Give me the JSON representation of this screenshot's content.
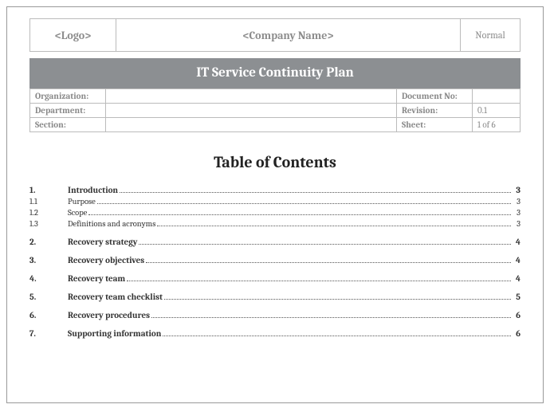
{
  "header": {
    "logo_placeholder": "<Logo>",
    "company_placeholder": "<Company Name>",
    "mode": "Normal"
  },
  "title": "IT Service Continuity Plan",
  "meta": {
    "org_label": "Organization:",
    "org_value": "",
    "docno_label": "Document No:",
    "docno_value": "",
    "dept_label": "Department:",
    "dept_value": "",
    "rev_label": "Revision:",
    "rev_value": "0.1",
    "sect_label": "Section:",
    "sect_value": "",
    "sheet_label": "Sheet:",
    "sheet_value": "1 of 6"
  },
  "toc_heading": "Table of Contents",
  "toc": [
    {
      "level": 1,
      "num": "1.",
      "label": "Introduction",
      "page": "3"
    },
    {
      "level": 2,
      "num": "1.1",
      "label": "Purpose",
      "page": "3"
    },
    {
      "level": 2,
      "num": "1.2",
      "label": "Scope",
      "page": "3"
    },
    {
      "level": 2,
      "num": "1.3",
      "label": "Definitions and acronyms",
      "page": "3"
    },
    {
      "level": 1,
      "num": "2.",
      "label": "Recovery strategy",
      "page": "4"
    },
    {
      "level": 1,
      "num": "3.",
      "label": "Recovery objectives",
      "page": "4"
    },
    {
      "level": 1,
      "num": "4.",
      "label": "Recovery team",
      "page": "4"
    },
    {
      "level": 1,
      "num": "5.",
      "label": "Recovery team checklist",
      "page": "5"
    },
    {
      "level": 1,
      "num": "6.",
      "label": "Recovery procedures",
      "page": "6"
    },
    {
      "level": 1,
      "num": "7.",
      "label": "Supporting information",
      "page": "6"
    }
  ],
  "styles": {
    "border_color": "#bbbbbb",
    "header_text_color": "#8c8c8c",
    "titlebar_bg": "#8c8f92",
    "titlebar_fg": "#ffffff",
    "meta_text_color": "#888888",
    "toc_text_color": "#333333",
    "page_bg": "#ffffff",
    "font_family": "Cambria, Georgia, serif",
    "toc_title_fontsize_pt": 15,
    "titlebar_fontsize_pt": 13,
    "body_fontsize_pt": 8
  }
}
